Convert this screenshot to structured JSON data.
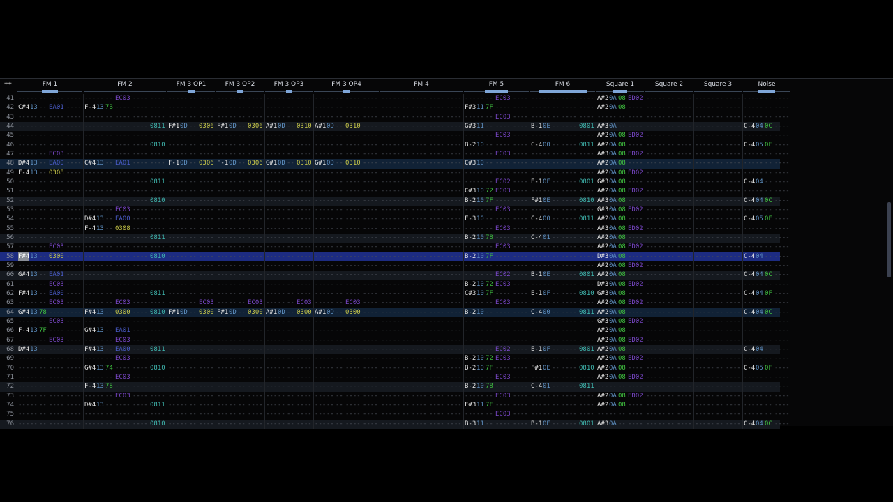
{
  "header": {
    "corner_label": "++"
  },
  "channels": [
    {
      "name": "FM 1",
      "fx": 2,
      "meter": 0.25
    },
    {
      "name": "FM 2",
      "fx": 3,
      "meter": 0.0
    },
    {
      "name": "FM 3 OP1",
      "fx": 1,
      "meter": 0.15
    },
    {
      "name": "FM 3 OP2",
      "fx": 1,
      "meter": 0.15
    },
    {
      "name": "FM 3 OP3",
      "fx": 1,
      "meter": 0.12
    },
    {
      "name": "FM 3 OP4",
      "fx": 2,
      "meter": 0.1
    },
    {
      "name": "FM 4",
      "fx": 3,
      "meter": 0.0
    },
    {
      "name": "FM 5",
      "fx": 2,
      "meter": 0.35
    },
    {
      "name": "FM 6",
      "fx": 2,
      "meter": 0.75
    },
    {
      "name": "Square 1",
      "fx": 1,
      "meter": 0.3
    },
    {
      "name": "Square 2",
      "fx": 1,
      "meter": 0.0
    },
    {
      "name": "Square 3",
      "fx": 1,
      "meter": 0.0
    },
    {
      "name": "Noise",
      "fx": 1,
      "meter": 0.35
    }
  ],
  "cursor_row": 58,
  "colors": {
    "accent": "#7fa6d8",
    "cursor_row": "#1d2c82",
    "effect": "#7a48c8",
    "volume": "#40c040"
  },
  "rows": [
    {
      "n": "41",
      "c": {
        "1": [
          "",
          "",
          "",
          "EC03"
        ],
        "7": [
          "",
          "",
          "",
          "EC03"
        ],
        "9": [
          "A#2",
          "0A",
          "08",
          "ED02"
        ]
      }
    },
    {
      "n": "42",
      "c": {
        "0": [
          "C#4",
          "13",
          "",
          "EA01"
        ],
        "1": [
          "F-4",
          "13",
          "7B"
        ],
        "7": [
          "F#3",
          "11",
          "7F"
        ],
        "9": [
          "A#2",
          "0A",
          "08"
        ]
      }
    },
    {
      "n": "43",
      "c": {
        "7": [
          "",
          "",
          "",
          "EC03"
        ]
      }
    },
    {
      "n": "44",
      "c": {
        "1": [
          "",
          "",
          "",
          "",
          "",
          "0811"
        ],
        "2": [
          "F#1",
          "0D",
          "",
          "0306"
        ],
        "3": [
          "F#1",
          "0D",
          "",
          "0306"
        ],
        "4": [
          "A#1",
          "0D",
          "",
          "0310"
        ],
        "5": [
          "A#1",
          "0D",
          "",
          "0310"
        ],
        "7": [
          "G#3",
          "11"
        ],
        "8": [
          "B-1",
          "0E",
          "",
          "",
          "0801"
        ],
        "9": [
          "A#3",
          "0A"
        ],
        "12": [
          "C-4",
          "04",
          "0C"
        ]
      }
    },
    {
      "n": "45",
      "c": {
        "7": [
          "",
          "",
          "",
          "EC03"
        ],
        "9": [
          "A#2",
          "0A",
          "08",
          "ED02"
        ]
      }
    },
    {
      "n": "46",
      "c": {
        "1": [
          "",
          "",
          "",
          "",
          "",
          "0810"
        ],
        "7": [
          "B-2",
          "10"
        ],
        "8": [
          "C-4",
          "00",
          "",
          "",
          "0811"
        ],
        "9": [
          "A#2",
          "0A",
          "08"
        ],
        "12": [
          "C-4",
          "05",
          "0F"
        ]
      }
    },
    {
      "n": "47",
      "c": {
        "0": [
          "",
          "",
          "",
          "EC03"
        ],
        "7": [
          "",
          "",
          "",
          "EC03"
        ],
        "9": [
          "A#3",
          "0A",
          "08",
          "ED02"
        ]
      }
    },
    {
      "n": "48",
      "c": {
        "0": [
          "D#4",
          "13",
          "",
          "EA00"
        ],
        "1": [
          "C#4",
          "13",
          "",
          "EA01"
        ],
        "2": [
          "F-1",
          "0D",
          "",
          "0306"
        ],
        "3": [
          "F-1",
          "0D",
          "",
          "0306"
        ],
        "4": [
          "G#1",
          "0D",
          "",
          "0310"
        ],
        "5": [
          "G#1",
          "0D",
          "",
          "0310"
        ],
        "7": [
          "C#3",
          "10"
        ],
        "9": [
          "A#2",
          "0A",
          "08"
        ]
      }
    },
    {
      "n": "49",
      "c": {
        "0": [
          "F-4",
          "13",
          "",
          "0308"
        ],
        "9": [
          "A#2",
          "0A",
          "08",
          "ED02"
        ]
      }
    },
    {
      "n": "50",
      "c": {
        "1": [
          "",
          "",
          "",
          "",
          "",
          "0811"
        ],
        "7": [
          "",
          "",
          "",
          "EC02"
        ],
        "8": [
          "E-1",
          "0F",
          "",
          "",
          "0801"
        ],
        "9": [
          "G#3",
          "0A",
          "08"
        ],
        "12": [
          "C-4",
          "04"
        ]
      }
    },
    {
      "n": "51",
      "c": {
        "7": [
          "C#3",
          "10",
          "72",
          "EC03"
        ],
        "9": [
          "A#2",
          "0A",
          "08",
          "ED02"
        ]
      }
    },
    {
      "n": "52",
      "c": {
        "1": [
          "",
          "",
          "",
          "",
          "",
          "0810"
        ],
        "7": [
          "B-2",
          "10",
          "7F"
        ],
        "8": [
          "F#1",
          "0E",
          "",
          "",
          "0810"
        ],
        "9": [
          "A#3",
          "0A",
          "08"
        ],
        "12": [
          "C-4",
          "04",
          "0C"
        ]
      }
    },
    {
      "n": "53",
      "c": {
        "1": [
          "",
          "",
          "",
          "EC03"
        ],
        "7": [
          "",
          "",
          "",
          "EC03"
        ],
        "9": [
          "G#3",
          "0A",
          "08",
          "ED02"
        ]
      }
    },
    {
      "n": "54",
      "c": {
        "1": [
          "D#4",
          "13",
          "",
          "EA00"
        ],
        "7": [
          "F-3",
          "10"
        ],
        "8": [
          "C-4",
          "00",
          "",
          "",
          "0811"
        ],
        "9": [
          "A#2",
          "0A",
          "08"
        ],
        "12": [
          "C-4",
          "05",
          "0F"
        ]
      }
    },
    {
      "n": "55",
      "c": {
        "1": [
          "F-4",
          "13",
          "",
          "0308"
        ],
        "7": [
          "",
          "",
          "",
          "EC03"
        ],
        "9": [
          "A#3",
          "0A",
          "08",
          "ED02"
        ]
      }
    },
    {
      "n": "56",
      "c": {
        "1": [
          "",
          "",
          "",
          "",
          "",
          "0811"
        ],
        "7": [
          "B-2",
          "10",
          "78"
        ],
        "8": [
          "C-4",
          "01"
        ],
        "9": [
          "A#2",
          "0A",
          "08"
        ]
      }
    },
    {
      "n": "57",
      "c": {
        "0": [
          "",
          "",
          "",
          "EC03"
        ],
        "7": [
          "",
          "",
          "",
          "EC03"
        ],
        "9": [
          "A#2",
          "0A",
          "08",
          "ED02"
        ]
      }
    },
    {
      "n": "58",
      "c": {
        "0": [
          "F#4",
          "13",
          "",
          "0300"
        ],
        "1": [
          "",
          "",
          "",
          "",
          "",
          "0810"
        ],
        "7": [
          "B-2",
          "10",
          "7F"
        ],
        "9": [
          "D#3",
          "0A",
          "08"
        ],
        "12": [
          "C-4",
          "04"
        ]
      }
    },
    {
      "n": "59",
      "c": {
        "9": [
          "A#2",
          "0A",
          "08",
          "ED02"
        ]
      }
    },
    {
      "n": "60",
      "c": {
        "0": [
          "G#4",
          "13",
          "",
          "EA01"
        ],
        "7": [
          "",
          "",
          "",
          "EC02"
        ],
        "8": [
          "B-1",
          "0E",
          "",
          "",
          "0801"
        ],
        "9": [
          "A#2",
          "0A",
          "08"
        ],
        "12": [
          "C-4",
          "04",
          "0C"
        ]
      }
    },
    {
      "n": "61",
      "c": {
        "0": [
          "",
          "",
          "",
          "EC03"
        ],
        "7": [
          "B-2",
          "10",
          "72",
          "EC03"
        ],
        "9": [
          "D#3",
          "0A",
          "08",
          "ED02"
        ]
      }
    },
    {
      "n": "62",
      "c": {
        "0": [
          "F#4",
          "13",
          "",
          "EA00"
        ],
        "1": [
          "",
          "",
          "",
          "",
          "",
          "0811"
        ],
        "7": [
          "C#3",
          "10",
          "7F"
        ],
        "8": [
          "E-1",
          "0F",
          "",
          "",
          "0810"
        ],
        "9": [
          "G#3",
          "0A",
          "08"
        ],
        "12": [
          "C-4",
          "04",
          "0F"
        ]
      }
    },
    {
      "n": "63",
      "c": {
        "0": [
          "",
          "",
          "",
          "EC03"
        ],
        "1": [
          "",
          "",
          "",
          "EC03"
        ],
        "2": [
          "",
          "",
          "",
          "EC03"
        ],
        "3": [
          "",
          "",
          "",
          "EC03"
        ],
        "4": [
          "",
          "",
          "",
          "EC03"
        ],
        "5": [
          "",
          "",
          "",
          "EC03"
        ],
        "7": [
          "",
          "",
          "",
          "EC03"
        ],
        "9": [
          "A#2",
          "0A",
          "08",
          "ED02"
        ]
      }
    },
    {
      "n": "64",
      "c": {
        "0": [
          "G#4",
          "13",
          "78"
        ],
        "1": [
          "F#4",
          "13",
          "",
          "0300",
          "",
          "0810"
        ],
        "2": [
          "F#1",
          "0D",
          "",
          "0300"
        ],
        "3": [
          "F#1",
          "0D",
          "",
          "0300"
        ],
        "4": [
          "A#1",
          "0D",
          "",
          "0300"
        ],
        "5": [
          "A#1",
          "0D",
          "",
          "0300"
        ],
        "7": [
          "B-2",
          "10"
        ],
        "8": [
          "C-4",
          "00",
          "",
          "",
          "0811"
        ],
        "9": [
          "A#2",
          "0A",
          "08"
        ],
        "12": [
          "C-4",
          "04",
          "0C"
        ]
      }
    },
    {
      "n": "65",
      "c": {
        "0": [
          "",
          "",
          "",
          "EC03"
        ],
        "9": [
          "G#3",
          "0A",
          "08",
          "ED02"
        ]
      }
    },
    {
      "n": "66",
      "c": {
        "0": [
          "F-4",
          "13",
          "7F"
        ],
        "1": [
          "G#4",
          "13",
          "",
          "EA01"
        ],
        "9": [
          "A#2",
          "0A",
          "08"
        ]
      }
    },
    {
      "n": "67",
      "c": {
        "0": [
          "",
          "",
          "",
          "EC03"
        ],
        "1": [
          "",
          "",
          "",
          "EC03"
        ],
        "9": [
          "A#2",
          "0A",
          "08",
          "ED02"
        ]
      }
    },
    {
      "n": "68",
      "c": {
        "0": [
          "D#4",
          "13"
        ],
        "1": [
          "F#4",
          "13",
          "",
          "EA00",
          "",
          "0811"
        ],
        "7": [
          "",
          "",
          "",
          "EC02"
        ],
        "8": [
          "E-1",
          "0F",
          "",
          "",
          "0801"
        ],
        "9": [
          "A#2",
          "0A",
          "08"
        ],
        "12": [
          "C-4",
          "04"
        ]
      }
    },
    {
      "n": "69",
      "c": {
        "1": [
          "",
          "",
          "",
          "EC03"
        ],
        "7": [
          "B-2",
          "10",
          "72",
          "EC03"
        ],
        "9": [
          "A#2",
          "0A",
          "08",
          "ED02"
        ]
      }
    },
    {
      "n": "70",
      "c": {
        "1": [
          "G#4",
          "13",
          "74",
          "",
          "",
          "0810"
        ],
        "7": [
          "B-2",
          "10",
          "7F"
        ],
        "8": [
          "F#1",
          "0E",
          "",
          "",
          "0810"
        ],
        "9": [
          "A#2",
          "0A",
          "08"
        ],
        "12": [
          "C-4",
          "05",
          "0F"
        ]
      }
    },
    {
      "n": "71",
      "c": {
        "1": [
          "",
          "",
          "",
          "EC03"
        ],
        "7": [
          "",
          "",
          "",
          "EC03"
        ],
        "9": [
          "A#2",
          "0A",
          "08",
          "ED02"
        ]
      }
    },
    {
      "n": "72",
      "c": {
        "1": [
          "F-4",
          "13",
          "78"
        ],
        "7": [
          "B-2",
          "10",
          "78"
        ],
        "8": [
          "C-4",
          "01",
          "",
          "",
          "0811"
        ]
      }
    },
    {
      "n": "73",
      "c": {
        "1": [
          "",
          "",
          "",
          "EC03"
        ],
        "7": [
          "",
          "",
          "",
          "EC03"
        ],
        "9": [
          "A#2",
          "0A",
          "08",
          "ED02"
        ]
      }
    },
    {
      "n": "74",
      "c": {
        "1": [
          "D#4",
          "13",
          "",
          "",
          "",
          "0811"
        ],
        "7": [
          "F#3",
          "11",
          "7F"
        ],
        "9": [
          "A#2",
          "0A",
          "08"
        ]
      }
    },
    {
      "n": "75",
      "c": {
        "7": [
          "",
          "",
          "",
          "EC03"
        ]
      }
    },
    {
      "n": "76",
      "c": {
        "1": [
          "",
          "",
          "",
          "",
          "",
          "0810"
        ],
        "7": [
          "B-3",
          "11"
        ],
        "8": [
          "B-1",
          "0E",
          "",
          "",
          "0801"
        ],
        "9": [
          "A#3",
          "0A"
        ],
        "12": [
          "C-4",
          "04",
          "0C"
        ]
      }
    }
  ]
}
